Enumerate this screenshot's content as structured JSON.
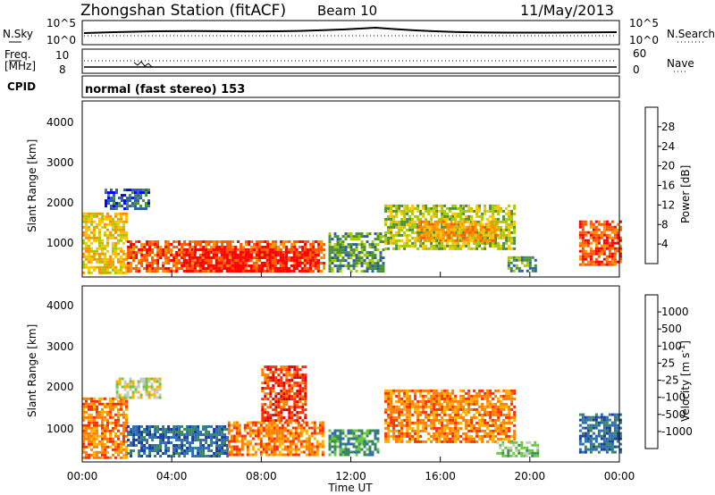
{
  "header": {
    "title": "Zhongshan Station (fitACF)",
    "beam": "Beam 10",
    "date": "11/May/2013"
  },
  "panels": {
    "nsky": {
      "label": "N.Sky",
      "ticks_left": [
        "10^5",
        "10^0"
      ],
      "ticks_right": [
        "10^5",
        "10^0"
      ],
      "right_label": "N.Search"
    },
    "freq": {
      "label_line1": "Freq.",
      "label_line2": "[MHz]",
      "ticks_left": [
        "10",
        "8"
      ],
      "ticks_right": [
        "60",
        "0"
      ],
      "right_label": "Nave"
    },
    "cpid": {
      "label": "CPID",
      "text": "normal (fast stereo) 153"
    }
  },
  "x_axis": {
    "label": "Time UT",
    "ticks": [
      "00:00",
      "04:00",
      "08:00",
      "12:00",
      "16:00",
      "20:00",
      "00:00"
    ]
  },
  "chart_data": [
    {
      "type": "heatmap",
      "name": "power",
      "ylabel": "Slant Range [km]",
      "yticks": [
        "4000",
        "3000",
        "2000",
        "1000"
      ],
      "colorbar": {
        "label": "Power [dB]",
        "ticks": [
          "28",
          "24",
          "20",
          "16",
          "12",
          "8",
          "4"
        ],
        "colors": [
          "#ff0000",
          "#ff5a00",
          "#ff9100",
          "#ffc400",
          "#a8c800",
          "#4a8f3a",
          "#2a5fa8",
          "#0000ff"
        ]
      },
      "ylim": [
        180,
        4600
      ],
      "xlim_hours": [
        0,
        24
      ],
      "regions": [
        {
          "t0": 0.0,
          "t1": 2.0,
          "r0": 300,
          "r1": 1800,
          "level": 3
        },
        {
          "t0": 2.0,
          "t1": 10.8,
          "r0": 350,
          "r1": 1100,
          "level": 1
        },
        {
          "t0": 4.5,
          "t1": 10.5,
          "r0": 300,
          "r1": 900,
          "level": 0
        },
        {
          "t0": 1.0,
          "t1": 3.0,
          "r0": 1900,
          "r1": 2400,
          "level": 6
        },
        {
          "t0": 11.0,
          "t1": 13.5,
          "r0": 350,
          "r1": 1300,
          "level": 5
        },
        {
          "t0": 13.5,
          "t1": 19.3,
          "r0": 900,
          "r1": 2000,
          "level": 4
        },
        {
          "t0": 15.0,
          "t1": 18.5,
          "r0": 1100,
          "r1": 1600,
          "level": 2
        },
        {
          "t0": 19.0,
          "t1": 20.3,
          "r0": 300,
          "r1": 700,
          "level": 5
        },
        {
          "t0": 22.2,
          "t1": 24.0,
          "r0": 500,
          "r1": 1600,
          "level": 1
        }
      ]
    },
    {
      "type": "heatmap",
      "name": "velocity",
      "ylabel": "Slant Range [km]",
      "yticks": [
        "4000",
        "3000",
        "2000",
        "1000"
      ],
      "colorbar": {
        "label": "Velocity [m s",
        "label_sup": "-1",
        "label_end": "]",
        "ticks": [
          "1000",
          "500",
          "100",
          "25",
          "-25",
          "-100",
          "-500",
          "-1000"
        ],
        "colors": [
          "#1a3fa0",
          "#2f6fb0",
          "#3a8a5a",
          "#6ac840",
          "#c8c8c8",
          "#ffb000",
          "#ff8000",
          "#ff3000",
          "#e00000"
        ]
      },
      "ylim": [
        180,
        4600
      ],
      "xlim_hours": [
        0,
        24
      ],
      "regions": [
        {
          "t0": 0.0,
          "t1": 2.0,
          "r0": 300,
          "r1": 1800,
          "level": 6
        },
        {
          "t0": 2.0,
          "t1": 6.5,
          "r0": 350,
          "r1": 1100,
          "level": 1
        },
        {
          "t0": 6.5,
          "t1": 10.8,
          "r0": 350,
          "r1": 1200,
          "level": 6
        },
        {
          "t0": 8.0,
          "t1": 10.0,
          "r0": 1200,
          "r1": 2600,
          "level": 7
        },
        {
          "t0": 1.5,
          "t1": 3.5,
          "r0": 1800,
          "r1": 2300,
          "level": 4
        },
        {
          "t0": 11.0,
          "t1": 13.2,
          "r0": 350,
          "r1": 1000,
          "level": 2
        },
        {
          "t0": 13.5,
          "t1": 19.3,
          "r0": 700,
          "r1": 2000,
          "level": 6
        },
        {
          "t0": 18.5,
          "t1": 20.3,
          "r0": 350,
          "r1": 700,
          "level": 3
        },
        {
          "t0": 22.2,
          "t1": 24.0,
          "r0": 400,
          "r1": 1400,
          "level": 1
        }
      ]
    }
  ]
}
